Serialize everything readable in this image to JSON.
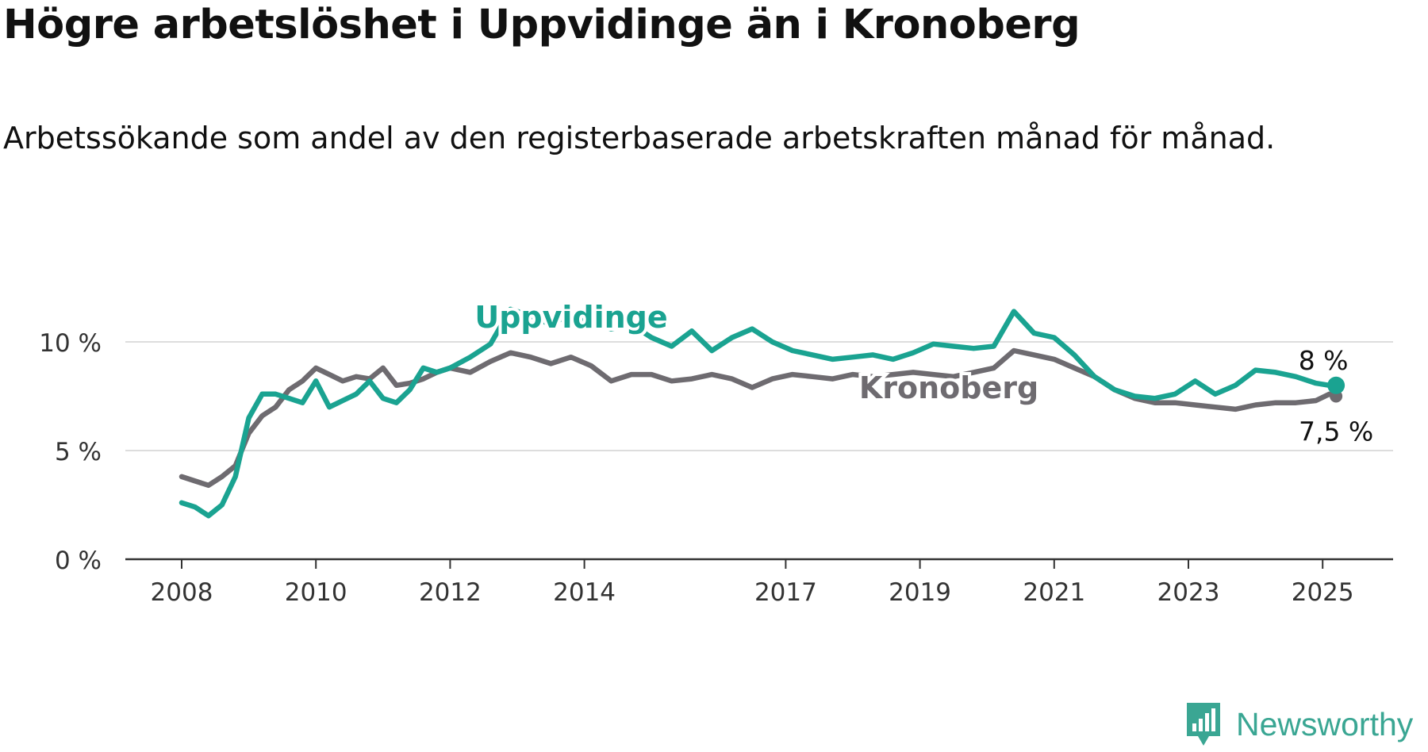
{
  "title": "Högre arbetslöshet i Uppvidinge än i Kronoberg",
  "subtitle": "Arbetssökande som andel av den registerbaserade arbetskraften månad för månad.",
  "brand": {
    "name": "Newsworthy",
    "color": "#3aa693",
    "icon": "bar-chart-speech-bubble-icon"
  },
  "chart_data": {
    "type": "line",
    "title": "Högre arbetslöshet i Uppvidinge än i Kronoberg",
    "subtitle": "Arbetssökande som andel av den registerbaserade arbetskraften månad för månad.",
    "xlabel": "",
    "ylabel": "",
    "ylim": [
      0,
      10
    ],
    "yticks": [
      "0 %",
      "5 %",
      "10 %"
    ],
    "ytick_values": [
      0,
      5,
      10
    ],
    "xticks": [
      "2008",
      "2010",
      "2012",
      "2014",
      "2017",
      "2019",
      "2021",
      "2023",
      "2025"
    ],
    "xtick_values": [
      2008.0,
      2010.0,
      2012.0,
      2014.0,
      2017.0,
      2019.0,
      2021.0,
      2023.0,
      2025.0
    ],
    "xlim": [
      2008.0,
      2025.2
    ],
    "grid": true,
    "legend": "inline labels",
    "series": [
      {
        "name": "Kronoberg",
        "color": "#6e6b70",
        "end_label": "7,5 %",
        "x": [
          2008.0,
          2008.2,
          2008.4,
          2008.6,
          2008.8,
          2009.0,
          2009.2,
          2009.4,
          2009.6,
          2009.8,
          2010.0,
          2010.2,
          2010.4,
          2010.6,
          2010.8,
          2011.0,
          2011.2,
          2011.4,
          2011.6,
          2011.8,
          2012.0,
          2012.3,
          2012.6,
          2012.9,
          2013.2,
          2013.5,
          2013.8,
          2014.1,
          2014.4,
          2014.7,
          2015.0,
          2015.3,
          2015.6,
          2015.9,
          2016.2,
          2016.5,
          2016.8,
          2017.1,
          2017.4,
          2017.7,
          2018.0,
          2018.3,
          2018.6,
          2018.9,
          2019.2,
          2019.5,
          2019.8,
          2020.1,
          2020.4,
          2020.7,
          2021.0,
          2021.3,
          2021.6,
          2021.9,
          2022.2,
          2022.5,
          2022.8,
          2023.1,
          2023.4,
          2023.7,
          2024.0,
          2024.3,
          2024.6,
          2024.9,
          2025.1,
          2025.2
        ],
        "values": [
          3.8,
          3.6,
          3.4,
          3.8,
          4.3,
          5.8,
          6.6,
          7.0,
          7.8,
          8.2,
          8.8,
          8.5,
          8.2,
          8.4,
          8.3,
          8.8,
          8.0,
          8.1,
          8.3,
          8.6,
          8.8,
          8.6,
          9.1,
          9.5,
          9.3,
          9.0,
          9.3,
          8.9,
          8.2,
          8.5,
          8.5,
          8.2,
          8.3,
          8.5,
          8.3,
          7.9,
          8.3,
          8.5,
          8.4,
          8.3,
          8.5,
          8.4,
          8.5,
          8.6,
          8.5,
          8.4,
          8.6,
          8.8,
          9.6,
          9.4,
          9.2,
          8.8,
          8.4,
          7.8,
          7.4,
          7.2,
          7.2,
          7.1,
          7.0,
          6.9,
          7.1,
          7.2,
          7.2,
          7.3,
          7.6,
          7.5
        ]
      },
      {
        "name": "Uppvidinge",
        "color": "#1aa391",
        "end_label": "8 %",
        "x": [
          2008.0,
          2008.2,
          2008.4,
          2008.6,
          2008.8,
          2009.0,
          2009.2,
          2009.4,
          2009.6,
          2009.8,
          2010.0,
          2010.2,
          2010.4,
          2010.6,
          2010.8,
          2011.0,
          2011.2,
          2011.4,
          2011.6,
          2011.8,
          2012.0,
          2012.3,
          2012.6,
          2012.9,
          2013.2,
          2013.5,
          2013.8,
          2014.1,
          2014.4,
          2014.7,
          2015.0,
          2015.3,
          2015.6,
          2015.9,
          2016.2,
          2016.5,
          2016.8,
          2017.1,
          2017.4,
          2017.7,
          2018.0,
          2018.3,
          2018.6,
          2018.9,
          2019.2,
          2019.5,
          2019.8,
          2020.1,
          2020.4,
          2020.7,
          2021.0,
          2021.3,
          2021.6,
          2021.9,
          2022.2,
          2022.5,
          2022.8,
          2023.1,
          2023.4,
          2023.7,
          2024.0,
          2024.3,
          2024.6,
          2024.9,
          2025.1,
          2025.2
        ],
        "values": [
          2.6,
          2.4,
          2.0,
          2.5,
          3.8,
          6.5,
          7.6,
          7.6,
          7.4,
          7.2,
          8.2,
          7.0,
          7.3,
          7.6,
          8.2,
          7.4,
          7.2,
          7.8,
          8.8,
          8.6,
          8.8,
          9.3,
          9.9,
          11.5,
          11.2,
          10.8,
          11.3,
          10.9,
          10.6,
          10.8,
          10.2,
          9.8,
          10.5,
          9.6,
          10.2,
          10.6,
          10.0,
          9.6,
          9.4,
          9.2,
          9.3,
          9.4,
          9.2,
          9.5,
          9.9,
          9.8,
          9.7,
          9.8,
          11.4,
          10.4,
          10.2,
          9.4,
          8.4,
          7.8,
          7.5,
          7.4,
          7.6,
          8.2,
          7.6,
          8.0,
          8.7,
          8.6,
          8.4,
          8.1,
          8.0,
          8.0
        ]
      }
    ],
    "annotations": [
      {
        "series": "Uppvidinge",
        "text": "Uppvidinge",
        "at_x": 2013.2
      },
      {
        "series": "Kronoberg",
        "text": "Kronoberg",
        "at_x": 2019.3
      }
    ]
  }
}
